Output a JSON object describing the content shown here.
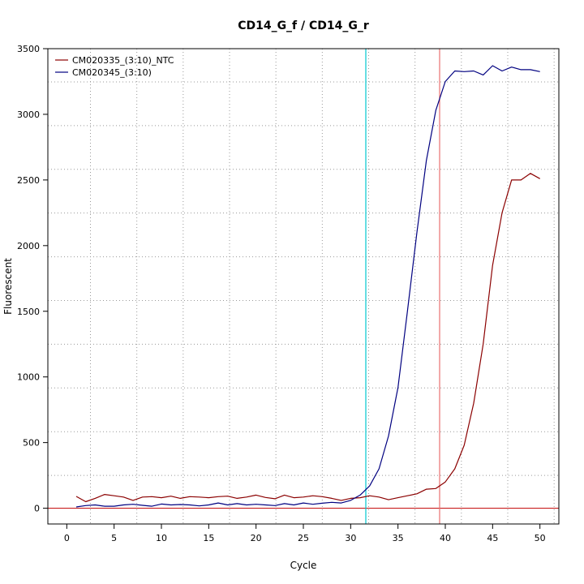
{
  "chart_data": {
    "type": "line",
    "title": "CD14_G_f / CD14_G_r",
    "xlabel": "Cycle",
    "ylabel": "Fluorescent",
    "xlim": [
      -2,
      52
    ],
    "ylim": [
      -120,
      3500
    ],
    "xticks": [
      0,
      5,
      10,
      15,
      20,
      25,
      30,
      35,
      40,
      45,
      50
    ],
    "yticks": [
      0,
      500,
      1000,
      1500,
      2000,
      2500,
      3000,
      3500
    ],
    "grid": true,
    "legend": "top-left",
    "threshold_y": 0,
    "vlines": [
      {
        "x": 31.6,
        "color": "#00c8d0"
      },
      {
        "x": 39.4,
        "color": "#e87070"
      }
    ],
    "series": [
      {
        "name": "CM020335_(3:10)_NTC",
        "color": "#8b0000",
        "x": [
          1,
          2,
          3,
          4,
          5,
          6,
          7,
          8,
          9,
          10,
          11,
          12,
          13,
          14,
          15,
          16,
          17,
          18,
          19,
          20,
          21,
          22,
          23,
          24,
          25,
          26,
          27,
          28,
          29,
          30,
          31,
          32,
          33,
          34,
          35,
          36,
          37,
          38,
          39,
          40,
          41,
          42,
          43,
          44,
          45,
          46,
          47,
          48,
          49,
          50
        ],
        "y": [
          90,
          50,
          75,
          105,
          95,
          85,
          60,
          85,
          88,
          80,
          92,
          75,
          88,
          85,
          80,
          88,
          92,
          75,
          85,
          100,
          82,
          72,
          100,
          80,
          85,
          95,
          88,
          75,
          60,
          75,
          80,
          95,
          85,
          65,
          80,
          95,
          110,
          145,
          150,
          200,
          300,
          480,
          800,
          1250,
          1850,
          2250,
          2500,
          2500,
          2550,
          2510
        ]
      },
      {
        "name": "CM020345_(3:10)",
        "color": "#000080",
        "x": [
          1,
          2,
          3,
          4,
          5,
          6,
          7,
          8,
          9,
          10,
          11,
          12,
          13,
          14,
          15,
          16,
          17,
          18,
          19,
          20,
          21,
          22,
          23,
          24,
          25,
          26,
          27,
          28,
          29,
          30,
          31,
          32,
          33,
          34,
          35,
          36,
          37,
          38,
          39,
          40,
          41,
          42,
          43,
          44,
          45,
          46,
          47,
          48,
          49,
          50
        ],
        "y": [
          10,
          20,
          25,
          15,
          15,
          25,
          30,
          22,
          15,
          32,
          25,
          28,
          25,
          18,
          25,
          40,
          25,
          35,
          25,
          30,
          25,
          20,
          35,
          25,
          40,
          30,
          38,
          45,
          40,
          60,
          100,
          170,
          300,
          550,
          920,
          1500,
          2100,
          2650,
          3030,
          3250,
          3330,
          3325,
          3330,
          3300,
          3370,
          3330,
          3360,
          3340,
          3340,
          3325
        ]
      }
    ]
  }
}
